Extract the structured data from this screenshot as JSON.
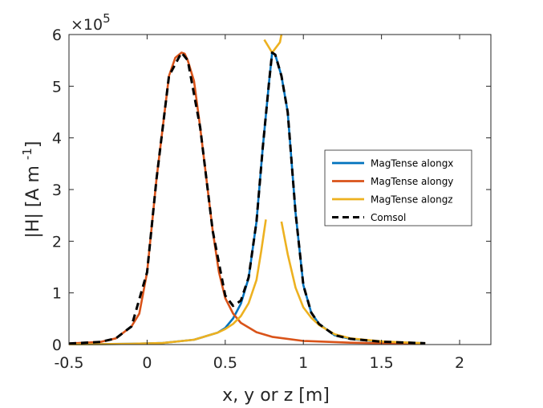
{
  "chart_data": {
    "type": "line",
    "xlabel": "x, y or z [m]",
    "ylabel": "|H| [A m ",
    "ylabel_exp": "-1",
    "ylabel_close": "]",
    "multiplier": "×10",
    "multiplier_exp": "5",
    "xlim": [
      -0.5,
      2.2
    ],
    "ylim": [
      0,
      6
    ],
    "xticks": [
      -0.5,
      0,
      0.5,
      1,
      1.5,
      2
    ],
    "xtick_labels": [
      "-0.5",
      "0",
      "0.5",
      "1",
      "1.5",
      "2"
    ],
    "yticks": [
      0,
      1,
      2,
      3,
      4,
      5,
      6
    ],
    "ytick_labels": [
      "0",
      "1",
      "2",
      "3",
      "4",
      "5",
      "6"
    ],
    "grid": false,
    "legend_position": "right",
    "series": [
      {
        "name": "MagTense alongx",
        "color": "#0072BD",
        "style": "solid",
        "x": [
          -0.5,
          -0.3,
          -0.1,
          0.1,
          0.3,
          0.45,
          0.5,
          0.55,
          0.6,
          0.65,
          0.7,
          0.74,
          0.78,
          0.8,
          0.82,
          0.86,
          0.9,
          0.95,
          1.0,
          1.05,
          1.1,
          1.2,
          1.3,
          1.5,
          1.78
        ],
        "y": [
          0.004,
          0.007,
          0.014,
          0.029,
          0.094,
          0.228,
          0.321,
          0.505,
          0.79,
          1.29,
          2.38,
          3.81,
          5.07,
          5.65,
          5.61,
          5.2,
          4.5,
          2.55,
          1.15,
          0.62,
          0.4,
          0.18,
          0.11,
          0.055,
          0.025
        ]
      },
      {
        "name": "MagTense alongy",
        "color": "#D95319",
        "style": "solid",
        "x": [
          -0.5,
          -0.3,
          -0.2,
          -0.1,
          -0.05,
          0,
          0.03,
          0.06,
          0.1,
          0.14,
          0.18,
          0.22,
          0.24,
          0.26,
          0.3,
          0.34,
          0.38,
          0.42,
          0.46,
          0.5,
          0.55,
          0.6,
          0.7,
          0.8,
          1.0,
          1.3,
          1.6,
          1.78
        ],
        "y": [
          0.02,
          0.05,
          0.12,
          0.35,
          0.6,
          1.4,
          2.3,
          3.2,
          4.2,
          5.2,
          5.55,
          5.65,
          5.63,
          5.5,
          5.1,
          4.2,
          3.2,
          2.2,
          1.4,
          0.9,
          0.6,
          0.42,
          0.24,
          0.15,
          0.07,
          0.035,
          0.02,
          0.015
        ]
      },
      {
        "name": "MagTense alongz",
        "color": "#EDB120",
        "style": "solid",
        "segments": [
          {
            "x": [
              -0.5,
              -0.3,
              -0.1,
              0.1,
              0.3,
              0.45,
              0.5,
              0.55,
              0.6,
              0.65,
              0.7,
              0.73,
              0.76
            ],
            "y": [
              0.004,
              0.007,
              0.014,
              0.029,
              0.094,
              0.228,
              0.3,
              0.4,
              0.55,
              0.8,
              1.25,
              1.8,
              2.42
            ]
          },
          {
            "x": [
              0.75,
              0.8,
              0.85,
              0.86
            ],
            "y": [
              5.9,
              5.65,
              5.85,
              6.0
            ]
          },
          {
            "x": [
              0.86,
              0.9,
              0.95,
              1.0,
              1.05,
              1.1,
              1.2,
              1.3,
              1.5,
              1.78
            ],
            "y": [
              2.38,
              1.75,
              1.1,
              0.72,
              0.52,
              0.38,
              0.2,
              0.12,
              0.06,
              0.025
            ]
          }
        ]
      },
      {
        "name": "Comsol",
        "color": "#000000",
        "style": "dashed",
        "x": [
          -0.5,
          -0.3,
          -0.2,
          -0.1,
          0,
          0.06,
          0.14,
          0.22,
          0.26,
          0.34,
          0.42,
          0.5,
          0.55,
          0.6,
          0.65,
          0.7,
          0.74,
          0.78,
          0.8,
          0.82,
          0.86,
          0.9,
          0.95,
          1.0,
          1.05,
          1.1,
          1.2,
          1.3,
          1.5,
          1.78
        ],
        "y": [
          0.02,
          0.05,
          0.12,
          0.35,
          1.4,
          3.2,
          5.2,
          5.65,
          5.5,
          4.2,
          2.2,
          0.95,
          0.75,
          0.85,
          1.3,
          2.38,
          3.81,
          5.07,
          5.65,
          5.61,
          5.2,
          4.5,
          2.55,
          1.15,
          0.62,
          0.4,
          0.18,
          0.11,
          0.055,
          0.025
        ]
      }
    ]
  }
}
